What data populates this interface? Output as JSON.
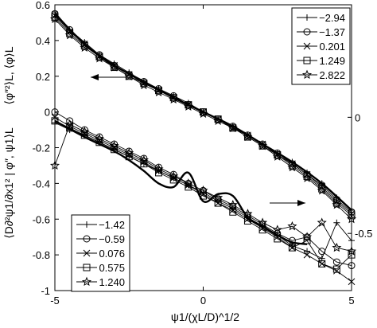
{
  "chart_data": {
    "type": "line",
    "xlabel": "ψ1/(χL/D)^1/2",
    "ylabel_left": "⟨D∂²ψ1/∂x1² | φ″, ψ1⟩L",
    "ylabel_right": "⟨φ″²⟩L, ⟨φ⟩L",
    "xlim": [
      -5,
      5
    ],
    "ylim_left": [
      -1,
      0.6
    ],
    "ylim_right_visible_ticks": [
      "0",
      "-0.5"
    ],
    "xticks": [
      "-5",
      "0",
      "5"
    ],
    "yticks_left": [
      "0.6",
      "0.4",
      "0.2",
      "0",
      "-0.2",
      "-0.4",
      "-0.6",
      "-0.8",
      "-1"
    ],
    "grid": false,
    "arrows": [
      {
        "points_to": "left axis",
        "near_series": "upper curves"
      },
      {
        "points_to": "right axis",
        "near_series": "lower curves"
      }
    ],
    "legend_top_right": {
      "placement": "top-right",
      "entries": [
        {
          "label": "−2.94",
          "marker": "plus"
        },
        {
          "label": "−1.37",
          "marker": "circle"
        },
        {
          "label": "0.201",
          "marker": "x"
        },
        {
          "label": "1.249",
          "marker": "square"
        },
        {
          "label": "2.822",
          "marker": "star"
        }
      ]
    },
    "legend_bottom_left": {
      "placement": "bottom-left",
      "entries": [
        {
          "label": "−1.42",
          "marker": "plus"
        },
        {
          "label": "−0.59",
          "marker": "circle"
        },
        {
          "label": "0.076",
          "marker": "x"
        },
        {
          "label": "0.575",
          "marker": "square"
        },
        {
          "label": "1.240",
          "marker": "star"
        }
      ]
    },
    "upper_series": [
      {
        "marker": "plus",
        "x": [
          -5,
          -4.5,
          -4,
          -3.5,
          -3,
          -2.5,
          -2,
          -1.5,
          -1,
          -0.5,
          0,
          0.5,
          1,
          1.5,
          2,
          2.5,
          3,
          3.5,
          4,
          4.5,
          5
        ],
        "y": [
          0.56,
          0.46,
          0.39,
          0.32,
          0.27,
          0.22,
          0.17,
          0.13,
          0.09,
          0.05,
          0.0,
          -0.04,
          -0.08,
          -0.13,
          -0.18,
          -0.23,
          -0.28,
          -0.34,
          -0.4,
          -0.48,
          -0.55
        ]
      },
      {
        "marker": "circle",
        "x": [
          -5,
          -4.5,
          -4,
          -3.5,
          -3,
          -2.5,
          -2,
          -1.5,
          -1,
          -0.5,
          0,
          0.5,
          1,
          1.5,
          2,
          2.5,
          3,
          3.5,
          4,
          4.5,
          5
        ],
        "y": [
          0.55,
          0.46,
          0.38,
          0.32,
          0.26,
          0.21,
          0.17,
          0.13,
          0.09,
          0.04,
          0.0,
          -0.04,
          -0.08,
          -0.13,
          -0.18,
          -0.23,
          -0.29,
          -0.35,
          -0.41,
          -0.49,
          -0.56
        ]
      },
      {
        "marker": "x",
        "x": [
          -5,
          -4.5,
          -4,
          -3.5,
          -3,
          -2.5,
          -2,
          -1.5,
          -1,
          -0.5,
          0,
          0.5,
          1,
          1.5,
          2,
          2.5,
          3,
          3.5,
          4,
          4.5,
          5
        ],
        "y": [
          0.54,
          0.45,
          0.38,
          0.31,
          0.26,
          0.21,
          0.16,
          0.12,
          0.08,
          0.04,
          0.0,
          -0.04,
          -0.09,
          -0.13,
          -0.18,
          -0.24,
          -0.29,
          -0.35,
          -0.42,
          -0.5,
          -0.57
        ]
      },
      {
        "marker": "square",
        "x": [
          -5,
          -4.5,
          -4,
          -3.5,
          -3,
          -2.5,
          -2,
          -1.5,
          -1,
          -0.5,
          0,
          0.5,
          1,
          1.5,
          2,
          2.5,
          3,
          3.5,
          4,
          4.5,
          5
        ],
        "y": [
          0.53,
          0.44,
          0.37,
          0.31,
          0.25,
          0.2,
          0.16,
          0.12,
          0.08,
          0.04,
          0.0,
          -0.04,
          -0.09,
          -0.14,
          -0.19,
          -0.24,
          -0.3,
          -0.36,
          -0.43,
          -0.51,
          -0.58
        ]
      },
      {
        "marker": "star",
        "x": [
          -5,
          -4.5,
          -4,
          -3.5,
          -3,
          -2.5,
          -2,
          -1.5,
          -1,
          -0.5,
          0,
          0.5,
          1,
          1.5,
          2,
          2.5,
          3,
          3.5,
          4,
          4.5,
          5
        ],
        "y": [
          0.52,
          0.43,
          0.36,
          0.3,
          0.25,
          0.2,
          0.15,
          0.11,
          0.07,
          0.03,
          -0.01,
          -0.05,
          -0.09,
          -0.14,
          -0.19,
          -0.25,
          -0.31,
          -0.37,
          -0.44,
          -0.52,
          -0.6
        ]
      }
    ],
    "upper_thick_line": {
      "x": [
        -5,
        -4,
        -3,
        -2,
        -1,
        0,
        1,
        2,
        3,
        4,
        5
      ],
      "y": [
        0.55,
        0.38,
        0.26,
        0.17,
        0.08,
        0.0,
        -0.08,
        -0.18,
        -0.28,
        -0.4,
        -0.55
      ]
    },
    "lower_series": [
      {
        "marker": "plus",
        "x": [
          -5,
          -4.5,
          -4,
          -3.5,
          -3,
          -2.5,
          -2,
          -1.5,
          -1,
          -0.5,
          0,
          0.5,
          1,
          1.5,
          2,
          2.5,
          3,
          3.5,
          4,
          4.5,
          5
        ],
        "y": [
          -0.06,
          -0.1,
          -0.13,
          -0.17,
          -0.21,
          -0.25,
          -0.29,
          -0.33,
          -0.37,
          -0.41,
          -0.45,
          -0.5,
          -0.54,
          -0.59,
          -0.64,
          -0.69,
          -0.75,
          -0.78,
          -0.82,
          -0.62,
          -0.72
        ]
      },
      {
        "marker": "circle",
        "x": [
          -5,
          -4.5,
          -4,
          -3.5,
          -3,
          -2.5,
          -2,
          -1.5,
          -1,
          -0.5,
          0,
          0.5,
          1,
          1.5,
          2,
          2.5,
          3,
          3.5,
          4,
          4.5,
          5
        ],
        "y": [
          0.0,
          -0.05,
          -0.1,
          -0.14,
          -0.18,
          -0.22,
          -0.26,
          -0.31,
          -0.35,
          -0.4,
          -0.44,
          -0.49,
          -0.53,
          -0.58,
          -0.63,
          -0.68,
          -0.72,
          -0.7,
          -0.78,
          -0.84,
          -0.86
        ]
      },
      {
        "marker": "x",
        "x": [
          -5,
          -4.5,
          -4,
          -3.5,
          -3,
          -2.5,
          -2,
          -1.5,
          -1,
          -0.5,
          0,
          0.5,
          1,
          1.5,
          2,
          2.5,
          3,
          3.5,
          4,
          4.5,
          5
        ],
        "y": [
          -0.03,
          -0.08,
          -0.12,
          -0.16,
          -0.2,
          -0.24,
          -0.28,
          -0.33,
          -0.37,
          -0.41,
          -0.46,
          -0.51,
          -0.55,
          -0.6,
          -0.65,
          -0.7,
          -0.76,
          -0.8,
          -0.85,
          -0.89,
          -0.95
        ]
      },
      {
        "marker": "square",
        "x": [
          -5,
          -4.5,
          -4,
          -3.5,
          -3,
          -2.5,
          -2,
          -1.5,
          -1,
          -0.5,
          0,
          0.5,
          1,
          1.5,
          2,
          2.5,
          3,
          3.5,
          4,
          4.5,
          5
        ],
        "y": [
          -0.05,
          -0.09,
          -0.13,
          -0.17,
          -0.21,
          -0.25,
          -0.29,
          -0.34,
          -0.38,
          -0.42,
          -0.47,
          -0.51,
          -0.56,
          -0.61,
          -0.66,
          -0.71,
          -0.76,
          -0.72,
          -0.85,
          -0.88,
          -0.8
        ]
      },
      {
        "marker": "star",
        "x": [
          -5,
          -4.5,
          -4,
          -3.5,
          -3,
          -2.5,
          -2,
          -1.5,
          -1,
          -0.5,
          0,
          0.5,
          1,
          1.5,
          2,
          2.5,
          3,
          3.5,
          4,
          4.5,
          5
        ],
        "y": [
          -0.3,
          -0.07,
          -0.11,
          -0.15,
          -0.19,
          -0.23,
          -0.27,
          -0.32,
          -0.36,
          -0.4,
          -0.44,
          -0.48,
          -0.52,
          -0.57,
          -0.62,
          -0.66,
          -0.64,
          -0.7,
          -0.62,
          -0.76,
          -0.78
        ]
      }
    ],
    "lower_thick_line": {
      "x": [
        -5,
        -4,
        -3,
        -2.5,
        -2,
        -1.5,
        -1,
        -0.5,
        0,
        0.5,
        1,
        1.5,
        2,
        2.5,
        3,
        3.5
      ],
      "y": [
        -0.05,
        -0.14,
        -0.22,
        -0.27,
        -0.33,
        -0.4,
        -0.42,
        -0.34,
        -0.5,
        -0.46,
        -0.47,
        -0.59,
        -0.64,
        -0.69,
        -0.73,
        -0.74
      ]
    }
  }
}
